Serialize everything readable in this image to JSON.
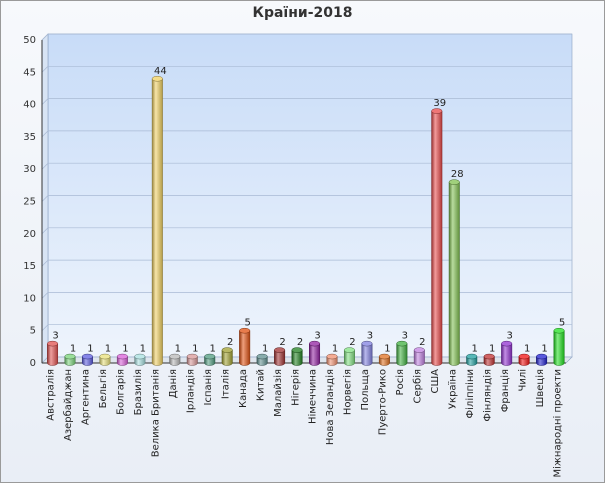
{
  "chart_data": {
    "type": "bar",
    "title": "Країни-2018",
    "xlabel": "",
    "ylabel": "",
    "ylim": [
      0,
      50
    ],
    "yticks": [
      0,
      5,
      10,
      15,
      20,
      25,
      30,
      35,
      40,
      45,
      50
    ],
    "grid": true,
    "legend": "none",
    "categories": [
      "Австралія",
      "Азербайджан",
      "Аргентина",
      "Бельгія",
      "Болгарія",
      "Бразилія",
      "Велика Британія",
      "Данія",
      "Ірландія",
      "Іспанія",
      "Італія",
      "Канада",
      "Китай",
      "Малайзія",
      "Нігерія",
      "Німеччина",
      "Нова Зеландія",
      "Норвегія",
      "Польща",
      "Пуерто-Рико",
      "Росія",
      "Сербія",
      "США",
      "Україна",
      "Філіппіни",
      "Фінляндія",
      "Франція",
      "Чилі",
      "Швеція",
      "Міжнародні проекти"
    ],
    "values": [
      3,
      1,
      1,
      1,
      1,
      1,
      44,
      1,
      1,
      1,
      2,
      5,
      1,
      2,
      2,
      3,
      1,
      2,
      3,
      1,
      3,
      2,
      39,
      28,
      1,
      1,
      3,
      1,
      1,
      5
    ],
    "colors": [
      "#e0504e",
      "#7ad47a",
      "#5c5ce0",
      "#e8e07a",
      "#d860d8",
      "#a8e0e0",
      "#f0d060",
      "#b8b8b8",
      "#d89898",
      "#509c80",
      "#a0a030",
      "#e05010",
      "#609090",
      "#a03030",
      "#208020",
      "#9020a0",
      "#f09070",
      "#80e080",
      "#8080e0",
      "#e07020",
      "#40b040",
      "#c080e0",
      "#e84848",
      "#80c050",
      "#20a0a0",
      "#c03030",
      "#9030d0",
      "#f01010",
      "#2020d0",
      "#20e020"
    ]
  }
}
